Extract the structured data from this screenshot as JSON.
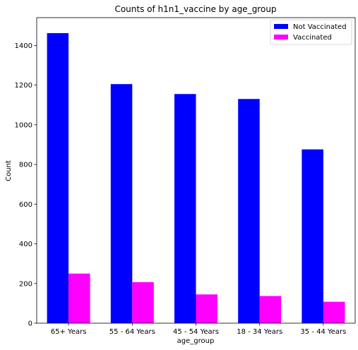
{
  "chart_data": {
    "type": "bar",
    "title": "Counts of h1n1_vaccine by age_group",
    "xlabel": "age_group",
    "ylabel": "Count",
    "categories": [
      "65+ Years",
      "55 - 64 Years",
      "45 - 54 Years",
      "18 - 34 Years",
      "35 - 44 Years"
    ],
    "series": [
      {
        "name": "Not Vaccinated",
        "color": "#0000ff",
        "values": [
          1462,
          1205,
          1155,
          1130,
          876
        ]
      },
      {
        "name": "Vaccinated",
        "color": "#ff00ff",
        "values": [
          250,
          207,
          145,
          137,
          108
        ]
      }
    ],
    "ylim": [
      0,
      1540
    ],
    "yticks": [
      0,
      200,
      400,
      600,
      800,
      1000,
      1200,
      1400
    ],
    "grid": false,
    "legend_position": "top-right"
  }
}
